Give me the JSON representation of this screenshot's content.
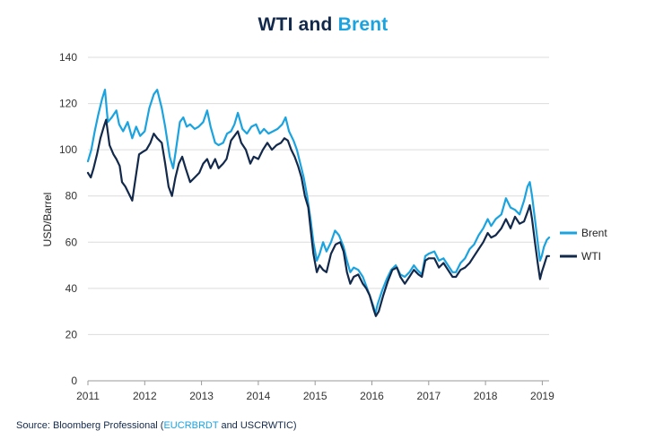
{
  "title": {
    "part1": "WTI and ",
    "part2": "Brent",
    "accent_color": "#1aa3df",
    "main_color": "#13294b"
  },
  "source": {
    "prefix": "Source: Bloomberg Professional (",
    "code1": "EUCRBRDT",
    "middle": " and USCRWTIC)"
  },
  "chart_data": {
    "type": "line",
    "ylabel": "USD/Barrel",
    "xlabel": "",
    "ylim": [
      0,
      140
    ],
    "yticks": [
      0,
      20,
      40,
      60,
      80,
      100,
      120,
      140
    ],
    "xlim": [
      2011.0,
      2019.12
    ],
    "xticks": [
      2011,
      2012,
      2013,
      2014,
      2015,
      2016,
      2017,
      2018,
      2019
    ],
    "grid": "horizontal",
    "legend_position": "right",
    "series": [
      {
        "name": "Brent",
        "color": "#1aa3df",
        "points": [
          [
            2011.0,
            95
          ],
          [
            2011.06,
            100
          ],
          [
            2011.12,
            108
          ],
          [
            2011.18,
            115
          ],
          [
            2011.25,
            122
          ],
          [
            2011.3,
            126
          ],
          [
            2011.35,
            112
          ],
          [
            2011.42,
            114
          ],
          [
            2011.5,
            117
          ],
          [
            2011.55,
            111
          ],
          [
            2011.62,
            108
          ],
          [
            2011.7,
            112
          ],
          [
            2011.78,
            105
          ],
          [
            2011.85,
            110
          ],
          [
            2011.92,
            106
          ],
          [
            2012.0,
            108
          ],
          [
            2012.08,
            118
          ],
          [
            2012.16,
            124
          ],
          [
            2012.22,
            126
          ],
          [
            2012.3,
            118
          ],
          [
            2012.36,
            110
          ],
          [
            2012.44,
            97
          ],
          [
            2012.5,
            92
          ],
          [
            2012.55,
            100
          ],
          [
            2012.62,
            112
          ],
          [
            2012.68,
            114
          ],
          [
            2012.74,
            110
          ],
          [
            2012.8,
            111
          ],
          [
            2012.88,
            109
          ],
          [
            2012.95,
            110
          ],
          [
            2013.03,
            112
          ],
          [
            2013.1,
            117
          ],
          [
            2013.16,
            110
          ],
          [
            2013.24,
            103
          ],
          [
            2013.3,
            102
          ],
          [
            2013.38,
            103
          ],
          [
            2013.45,
            107
          ],
          [
            2013.52,
            108
          ],
          [
            2013.58,
            111
          ],
          [
            2013.64,
            116
          ],
          [
            2013.72,
            109
          ],
          [
            2013.8,
            107
          ],
          [
            2013.88,
            110
          ],
          [
            2013.96,
            111
          ],
          [
            2014.03,
            107
          ],
          [
            2014.1,
            109
          ],
          [
            2014.18,
            107
          ],
          [
            2014.26,
            108
          ],
          [
            2014.34,
            109
          ],
          [
            2014.42,
            111
          ],
          [
            2014.48,
            114
          ],
          [
            2014.54,
            108
          ],
          [
            2014.62,
            104
          ],
          [
            2014.68,
            100
          ],
          [
            2014.74,
            94
          ],
          [
            2014.8,
            88
          ],
          [
            2014.86,
            80
          ],
          [
            2014.92,
            70
          ],
          [
            2014.97,
            60
          ],
          [
            2015.03,
            52
          ],
          [
            2015.08,
            55
          ],
          [
            2015.14,
            60
          ],
          [
            2015.2,
            56
          ],
          [
            2015.28,
            60
          ],
          [
            2015.35,
            65
          ],
          [
            2015.42,
            63
          ],
          [
            2015.5,
            58
          ],
          [
            2015.56,
            52
          ],
          [
            2015.62,
            47
          ],
          [
            2015.68,
            49
          ],
          [
            2015.76,
            48
          ],
          [
            2015.84,
            45
          ],
          [
            2015.9,
            41
          ],
          [
            2015.96,
            37
          ],
          [
            2016.03,
            32
          ],
          [
            2016.06,
            29
          ],
          [
            2016.1,
            33
          ],
          [
            2016.18,
            39
          ],
          [
            2016.26,
            44
          ],
          [
            2016.34,
            48
          ],
          [
            2016.42,
            50
          ],
          [
            2016.5,
            46
          ],
          [
            2016.58,
            45
          ],
          [
            2016.66,
            47
          ],
          [
            2016.74,
            50
          ],
          [
            2016.8,
            48
          ],
          [
            2016.88,
            46
          ],
          [
            2016.94,
            54
          ],
          [
            2017.0,
            55
          ],
          [
            2017.1,
            56
          ],
          [
            2017.18,
            52
          ],
          [
            2017.26,
            53
          ],
          [
            2017.34,
            50
          ],
          [
            2017.42,
            47
          ],
          [
            2017.48,
            47
          ],
          [
            2017.56,
            51
          ],
          [
            2017.64,
            53
          ],
          [
            2017.72,
            57
          ],
          [
            2017.8,
            59
          ],
          [
            2017.88,
            63
          ],
          [
            2017.96,
            66
          ],
          [
            2018.04,
            70
          ],
          [
            2018.1,
            67
          ],
          [
            2018.18,
            70
          ],
          [
            2018.28,
            72
          ],
          [
            2018.36,
            79
          ],
          [
            2018.44,
            75
          ],
          [
            2018.52,
            74
          ],
          [
            2018.6,
            72
          ],
          [
            2018.68,
            78
          ],
          [
            2018.74,
            84
          ],
          [
            2018.78,
            86
          ],
          [
            2018.82,
            80
          ],
          [
            2018.87,
            70
          ],
          [
            2018.92,
            60
          ],
          [
            2018.96,
            52
          ],
          [
            2018.99,
            54
          ],
          [
            2019.03,
            58
          ],
          [
            2019.08,
            61
          ],
          [
            2019.12,
            62
          ]
        ]
      },
      {
        "name": "WTI",
        "color": "#13294b",
        "points": [
          [
            2011.0,
            90
          ],
          [
            2011.05,
            88
          ],
          [
            2011.1,
            92
          ],
          [
            2011.16,
            98
          ],
          [
            2011.22,
            105
          ],
          [
            2011.28,
            110
          ],
          [
            2011.32,
            113
          ],
          [
            2011.38,
            102
          ],
          [
            2011.45,
            98
          ],
          [
            2011.5,
            96
          ],
          [
            2011.56,
            93
          ],
          [
            2011.6,
            86
          ],
          [
            2011.66,
            84
          ],
          [
            2011.72,
            81
          ],
          [
            2011.78,
            78
          ],
          [
            2011.84,
            88
          ],
          [
            2011.9,
            98
          ],
          [
            2011.96,
            99
          ],
          [
            2012.03,
            100
          ],
          [
            2012.1,
            103
          ],
          [
            2012.16,
            107
          ],
          [
            2012.22,
            105
          ],
          [
            2012.3,
            103
          ],
          [
            2012.36,
            94
          ],
          [
            2012.42,
            84
          ],
          [
            2012.48,
            80
          ],
          [
            2012.54,
            88
          ],
          [
            2012.6,
            94
          ],
          [
            2012.66,
            97
          ],
          [
            2012.72,
            92
          ],
          [
            2012.8,
            86
          ],
          [
            2012.88,
            88
          ],
          [
            2012.96,
            90
          ],
          [
            2013.03,
            94
          ],
          [
            2013.1,
            96
          ],
          [
            2013.16,
            92
          ],
          [
            2013.24,
            96
          ],
          [
            2013.3,
            92
          ],
          [
            2013.38,
            94
          ],
          [
            2013.44,
            96
          ],
          [
            2013.52,
            104
          ],
          [
            2013.58,
            106
          ],
          [
            2013.64,
            108
          ],
          [
            2013.7,
            103
          ],
          [
            2013.78,
            100
          ],
          [
            2013.86,
            94
          ],
          [
            2013.92,
            97
          ],
          [
            2014.0,
            96
          ],
          [
            2014.08,
            100
          ],
          [
            2014.16,
            103
          ],
          [
            2014.24,
            100
          ],
          [
            2014.32,
            102
          ],
          [
            2014.4,
            103
          ],
          [
            2014.46,
            105
          ],
          [
            2014.52,
            104
          ],
          [
            2014.58,
            100
          ],
          [
            2014.64,
            97
          ],
          [
            2014.7,
            93
          ],
          [
            2014.76,
            88
          ],
          [
            2014.82,
            80
          ],
          [
            2014.88,
            75
          ],
          [
            2014.92,
            66
          ],
          [
            2014.97,
            55
          ],
          [
            2015.03,
            47
          ],
          [
            2015.08,
            50
          ],
          [
            2015.14,
            48
          ],
          [
            2015.2,
            47
          ],
          [
            2015.28,
            55
          ],
          [
            2015.36,
            59
          ],
          [
            2015.44,
            60
          ],
          [
            2015.5,
            56
          ],
          [
            2015.56,
            47
          ],
          [
            2015.62,
            42
          ],
          [
            2015.68,
            45
          ],
          [
            2015.76,
            46
          ],
          [
            2015.84,
            42
          ],
          [
            2015.9,
            40
          ],
          [
            2015.96,
            37
          ],
          [
            2016.03,
            31
          ],
          [
            2016.07,
            28
          ],
          [
            2016.12,
            30
          ],
          [
            2016.2,
            37
          ],
          [
            2016.28,
            43
          ],
          [
            2016.36,
            48
          ],
          [
            2016.44,
            49
          ],
          [
            2016.5,
            45
          ],
          [
            2016.58,
            42
          ],
          [
            2016.66,
            45
          ],
          [
            2016.74,
            48
          ],
          [
            2016.82,
            46
          ],
          [
            2016.88,
            45
          ],
          [
            2016.94,
            52
          ],
          [
            2017.0,
            53
          ],
          [
            2017.1,
            53
          ],
          [
            2017.18,
            49
          ],
          [
            2017.26,
            51
          ],
          [
            2017.34,
            48
          ],
          [
            2017.42,
            45
          ],
          [
            2017.48,
            45
          ],
          [
            2017.56,
            48
          ],
          [
            2017.64,
            49
          ],
          [
            2017.72,
            51
          ],
          [
            2017.8,
            54
          ],
          [
            2017.88,
            57
          ],
          [
            2017.96,
            60
          ],
          [
            2018.04,
            64
          ],
          [
            2018.1,
            62
          ],
          [
            2018.18,
            63
          ],
          [
            2018.28,
            66
          ],
          [
            2018.36,
            70
          ],
          [
            2018.44,
            66
          ],
          [
            2018.52,
            71
          ],
          [
            2018.6,
            68
          ],
          [
            2018.68,
            69
          ],
          [
            2018.74,
            73
          ],
          [
            2018.78,
            76
          ],
          [
            2018.82,
            70
          ],
          [
            2018.87,
            60
          ],
          [
            2018.92,
            51
          ],
          [
            2018.96,
            44
          ],
          [
            2018.99,
            47
          ],
          [
            2019.03,
            50
          ],
          [
            2019.08,
            54
          ],
          [
            2019.12,
            54
          ]
        ]
      }
    ]
  }
}
